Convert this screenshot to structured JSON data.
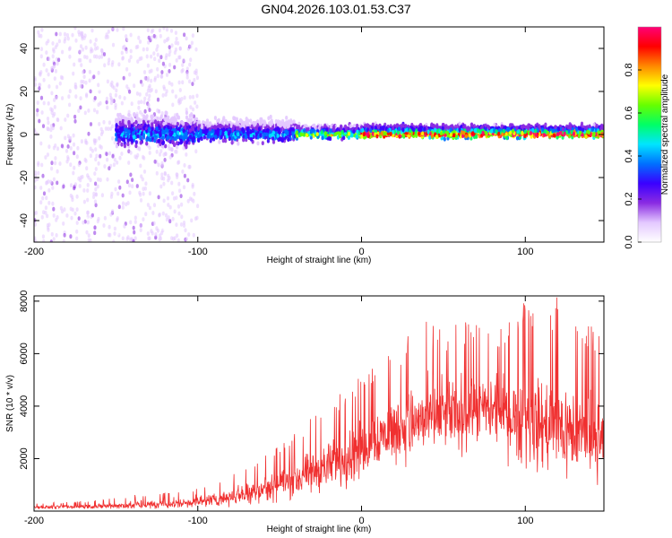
{
  "figure": {
    "title": "GN04.2026.103.01.53.C37"
  },
  "chart_data": [
    {
      "type": "heatmap",
      "xlabel": "Height of straight line (km)",
      "ylabel": "Frequency (Hz)",
      "xlim": [
        -200,
        148
      ],
      "ylim": [
        -50,
        50
      ],
      "x_ticks": [
        -200,
        -100,
        0,
        100
      ],
      "y_ticks": [
        -40,
        -20,
        0,
        20,
        40
      ],
      "colorbar": {
        "label": "Normalized spectral amplitude",
        "range": [
          0,
          1
        ],
        "ticks": [
          "0.0",
          "0.2",
          "0.4",
          "0.6",
          "0.8"
        ],
        "colors": [
          "#ffffff",
          "#e3c8ff",
          "#8a2be2",
          "#3a00ff",
          "#0070ff",
          "#00e5ff",
          "#00ff66",
          "#66ff00",
          "#ffff00",
          "#ff8800",
          "#ff0000",
          "#ff0077"
        ]
      },
      "bands": [
        {
          "x_range": [
            -200,
            -100
          ],
          "freq_spread": 50,
          "amplitude": 0.12
        },
        {
          "x_range": [
            -150,
            -100
          ],
          "freq_spread": 10,
          "amplitude": 0.35
        },
        {
          "x_range": [
            -100,
            -40
          ],
          "freq_spread": 7,
          "amplitude": 0.35
        },
        {
          "x_range": [
            -40,
            0
          ],
          "freq_spread": 4,
          "amplitude": 0.6
        },
        {
          "x_range": [
            0,
            148
          ],
          "freq_spread": 4,
          "amplitude": 0.85
        }
      ]
    },
    {
      "type": "line",
      "xlabel": "Height of straight line (km)",
      "ylabel": "SNR (10 * v/v)",
      "xlim": [
        -200,
        148
      ],
      "ylim": [
        0,
        8200
      ],
      "x_ticks": [
        -200,
        -100,
        0,
        100
      ],
      "y_ticks": [
        2000,
        4000,
        6000,
        8000
      ],
      "color": "#f03030",
      "series": [
        {
          "x": [
            -200,
            -180,
            -160,
            -140,
            -120,
            -100,
            -90,
            -80,
            -70,
            -60,
            -50,
            -40,
            -30,
            -20,
            -10,
            0,
            10,
            20,
            30,
            40,
            50,
            60,
            70,
            80,
            90,
            100,
            110,
            120,
            130,
            140,
            148
          ],
          "y": [
            150,
            160,
            180,
            220,
            260,
            350,
            450,
            560,
            700,
            850,
            1000,
            1200,
            1450,
            1700,
            2000,
            2400,
            2800,
            3100,
            3300,
            3500,
            3600,
            3700,
            3800,
            3800,
            3600,
            3400,
            3300,
            3200,
            3000,
            2700,
            2600
          ],
          "envelope_max": [
            300,
            350,
            420,
            620,
            700,
            900,
            1100,
            1400,
            1800,
            2200,
            2600,
            3000,
            3600,
            4000,
            4700,
            5200,
            5800,
            6300,
            6900,
            7300,
            7000,
            7600,
            7200,
            7000,
            7500,
            8000,
            7700,
            8200,
            7600,
            7300,
            6500
          ]
        }
      ]
    }
  ]
}
